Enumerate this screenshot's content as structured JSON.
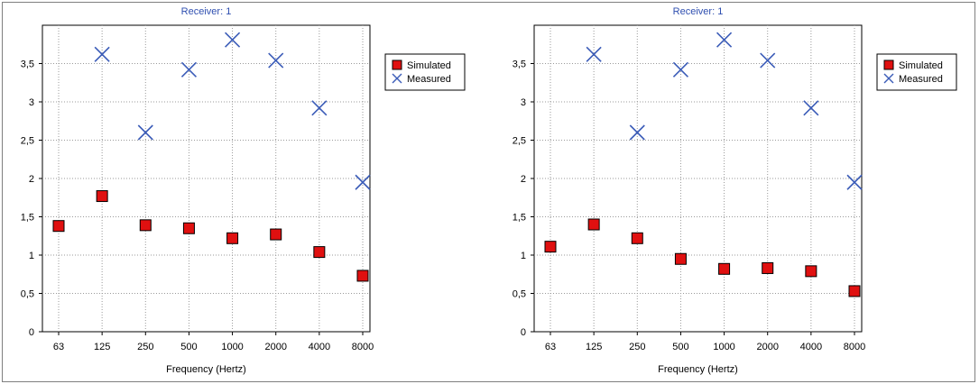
{
  "chart_data": [
    {
      "type": "scatter",
      "title": "Receiver: 1",
      "xlabel": "Frequency (Hertz)",
      "ylabel": "",
      "categories": [
        "63",
        "125",
        "250",
        "500",
        "1000",
        "2000",
        "4000",
        "8000"
      ],
      "ylim": [
        0,
        4
      ],
      "yticks": [
        "0",
        "0,5",
        "1",
        "1,5",
        "2",
        "2,5",
        "3",
        "3,5"
      ],
      "grid": true,
      "legend_position": "right",
      "series": [
        {
          "name": "Simulated",
          "marker": "square",
          "color": "#e01010",
          "values": [
            1.38,
            1.77,
            1.39,
            1.35,
            1.22,
            1.27,
            1.04,
            0.73
          ]
        },
        {
          "name": "Measured",
          "marker": "x",
          "color": "#3b5cb8",
          "values": [
            null,
            3.62,
            2.6,
            3.42,
            3.81,
            3.54,
            2.92,
            1.95
          ]
        }
      ]
    },
    {
      "type": "scatter",
      "title": "Receiver: 1",
      "xlabel": "Frequency (Hertz)",
      "ylabel": "",
      "categories": [
        "63",
        "125",
        "250",
        "500",
        "1000",
        "2000",
        "4000",
        "8000"
      ],
      "ylim": [
        0,
        4
      ],
      "yticks": [
        "0",
        "0,5",
        "1",
        "1,5",
        "2",
        "2,5",
        "3",
        "3,5"
      ],
      "grid": true,
      "legend_position": "right",
      "series": [
        {
          "name": "Simulated",
          "marker": "square",
          "color": "#e01010",
          "values": [
            1.11,
            1.4,
            1.22,
            0.95,
            0.82,
            0.83,
            0.79,
            0.53
          ]
        },
        {
          "name": "Measured",
          "marker": "x",
          "color": "#3b5cb8",
          "values": [
            null,
            3.62,
            2.6,
            3.42,
            3.81,
            3.54,
            2.92,
            1.95
          ]
        }
      ]
    }
  ]
}
